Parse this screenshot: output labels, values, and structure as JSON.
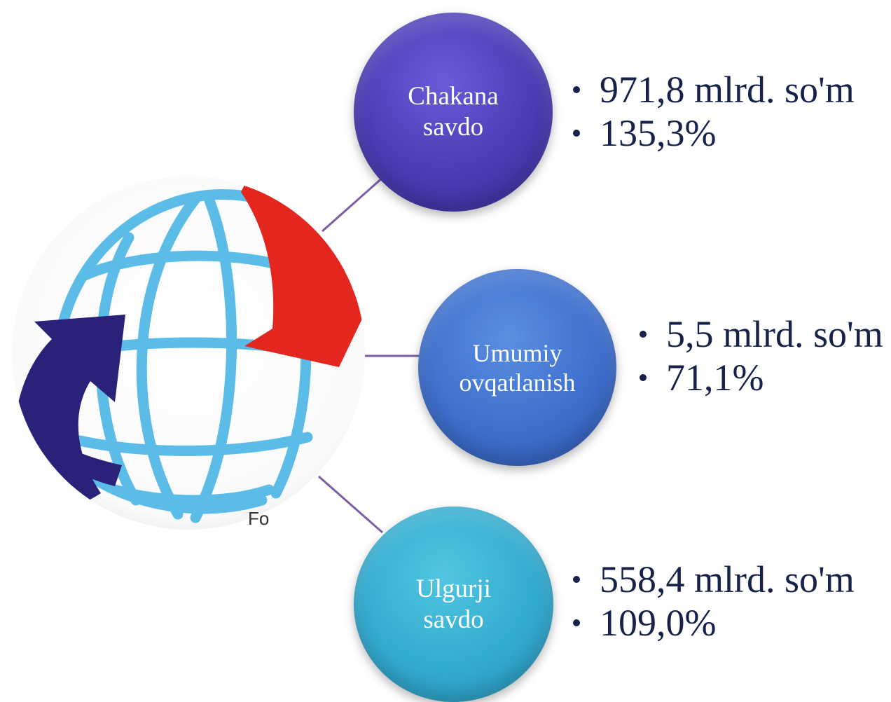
{
  "nodes": {
    "retail": {
      "label": "Chakana\nsavdo",
      "stat_1": "971,8 mlrd. so'm",
      "stat_2": "135,3%",
      "color": "#4a3cb4"
    },
    "catering": {
      "label": "Umumiy\novqatlanish",
      "stat_1": "5,5 mlrd. so'm",
      "stat_2": "71,1%",
      "color": "#3e6fce"
    },
    "wholesale": {
      "label": "Ulgurji\nsavdo",
      "stat_1": "558,4 mlrd. so'm",
      "stat_2": "109,0%",
      "color": "#33abcf"
    }
  },
  "globe": {
    "icon": "globe-with-arrows-icon",
    "partial_caption": "Fo"
  },
  "colors": {
    "connector": "#7b5ea7",
    "text": "#16224a",
    "globe_lines": "#5bbce8",
    "arrow_red": "#e3261e",
    "arrow_navy": "#2a2178"
  }
}
